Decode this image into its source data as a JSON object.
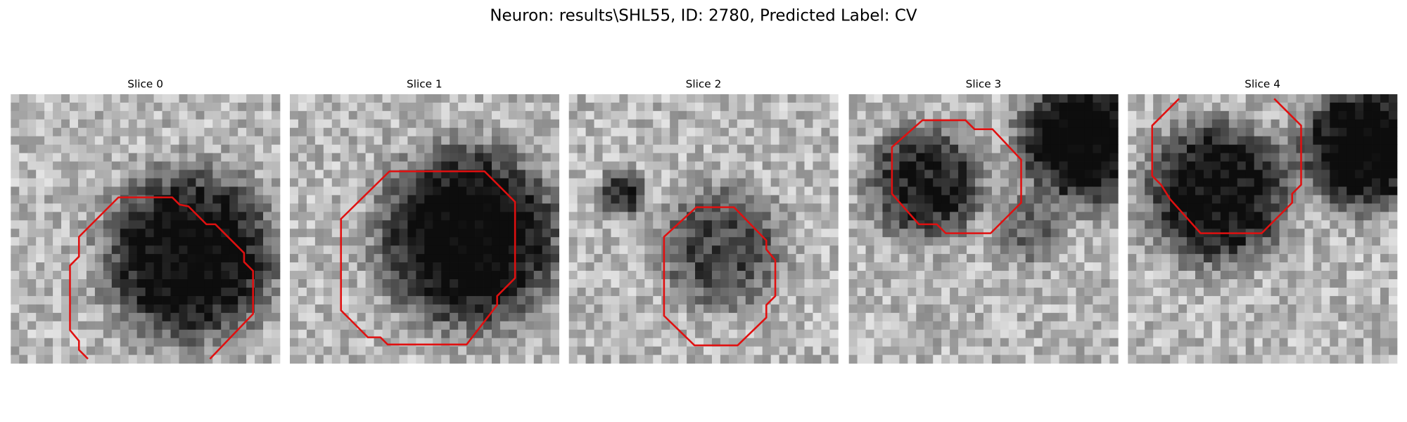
{
  "title": "Neuron: results\\SHL55, ID: 2780, Predicted Label: CV",
  "panels": [
    {
      "title": "Slice 0"
    },
    {
      "title": "Slice 1"
    },
    {
      "title": "Slice 2"
    },
    {
      "title": "Slice 3"
    },
    {
      "title": "Slice 4"
    }
  ]
}
